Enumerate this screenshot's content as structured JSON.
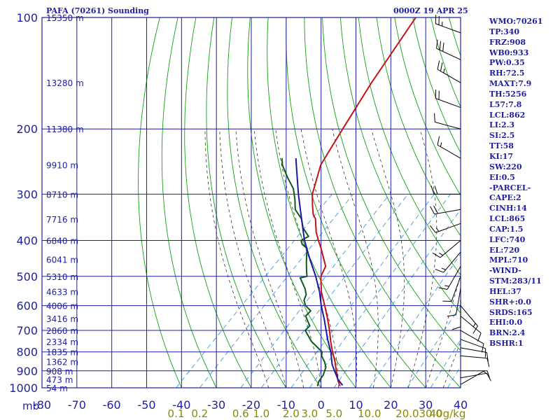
{
  "header": {
    "station_title": "PAFA (70261) Sounding",
    "valid_time": "0000Z 19 APR 25"
  },
  "colors": {
    "frame": "#1f1f9f",
    "isotherm": "#1f1f9f",
    "isobar": "#1f1f9f",
    "dry_adiabat": "#12a012",
    "moist_adiabat": "#333333",
    "mixing_ratio": "#3a9ad9",
    "temperature": "#c0141a",
    "dewpoint": "#0f5a1a",
    "parcel": "#1a1aa0",
    "mixing_label": "#8a8a00"
  },
  "chart_data": {
    "type": "skew-t",
    "title": "PAFA (70261) Sounding",
    "subtitle": "0000Z 19 APR 25",
    "pressure_unit_label": "mb",
    "pressure_levels": [
      100,
      200,
      300,
      400,
      500,
      600,
      700,
      800,
      900,
      1000
    ],
    "temperature_ticks": [
      -80,
      -70,
      -60,
      -50,
      -40,
      -30,
      -20,
      -10,
      0,
      10,
      20,
      30,
      40
    ],
    "temperature_tick_labels": [
      "-80",
      "-70",
      "-60",
      "-50",
      "-40",
      "-30",
      "-20",
      "-10",
      "0",
      "10",
      "20",
      "30",
      "40"
    ],
    "mixing_ratio_label_text": [
      "0.1",
      "0.2",
      "0.6",
      "1.0",
      "2.0",
      "3.0",
      "5.0",
      "10.0",
      "20.0",
      "30.0",
      "40g/kg"
    ],
    "height_labels": [
      {
        "p": 100,
        "text": "15350 m"
      },
      {
        "p": 150,
        "text": "13280 m"
      },
      {
        "p": 200,
        "text": "11380 m"
      },
      {
        "p": 250,
        "text": "9910 m"
      },
      {
        "p": 300,
        "text": "8710 m"
      },
      {
        "p": 350,
        "text": "7716 m"
      },
      {
        "p": 400,
        "text": "6840 m"
      },
      {
        "p": 450,
        "text": "6041 m"
      },
      {
        "p": 500,
        "text": "5310 m"
      },
      {
        "p": 550,
        "text": "4633 m"
      },
      {
        "p": 600,
        "text": "4006 m"
      },
      {
        "p": 650,
        "text": "3416 m"
      },
      {
        "p": 700,
        "text": "2860 m"
      },
      {
        "p": 750,
        "text": "2334 m"
      },
      {
        "p": 800,
        "text": "1835 m"
      },
      {
        "p": 850,
        "text": "1362 m"
      },
      {
        "p": 900,
        "text": "908 m"
      },
      {
        "p": 950,
        "text": "473 m"
      },
      {
        "p": 1000,
        "text": "54 m"
      }
    ],
    "series": [
      {
        "key": "temperature",
        "points": [
          {
            "p": 990,
            "t": 5
          },
          {
            "p": 960,
            "t": 3
          },
          {
            "p": 925,
            "t": 1
          },
          {
            "p": 900,
            "t": -0.5
          },
          {
            "p": 850,
            "t": -3.5
          },
          {
            "p": 800,
            "t": -7
          },
          {
            "p": 750,
            "t": -10.5
          },
          {
            "p": 700,
            "t": -14
          },
          {
            "p": 650,
            "t": -18
          },
          {
            "p": 600,
            "t": -22.5
          },
          {
            "p": 550,
            "t": -27.5
          },
          {
            "p": 500,
            "t": -32
          },
          {
            "p": 470,
            "t": -33.5
          },
          {
            "p": 450,
            "t": -36
          },
          {
            "p": 420,
            "t": -40
          },
          {
            "p": 400,
            "t": -43
          },
          {
            "p": 380,
            "t": -46
          },
          {
            "p": 350,
            "t": -50
          },
          {
            "p": 340,
            "t": -52
          },
          {
            "p": 320,
            "t": -55
          },
          {
            "p": 300,
            "t": -58
          },
          {
            "p": 250,
            "t": -64
          },
          {
            "p": 200,
            "t": -68
          },
          {
            "p": 150,
            "t": -73
          },
          {
            "p": 100,
            "t": -79
          }
        ]
      },
      {
        "key": "dewpoint",
        "points": [
          {
            "p": 990,
            "t": -1.5
          },
          {
            "p": 960,
            "t": -2.5
          },
          {
            "p": 925,
            "t": -3
          },
          {
            "p": 880,
            "t": -4.5
          },
          {
            "p": 850,
            "t": -6.5
          },
          {
            "p": 820,
            "t": -9
          },
          {
            "p": 800,
            "t": -10
          },
          {
            "p": 750,
            "t": -16
          },
          {
            "p": 700,
            "t": -21
          },
          {
            "p": 680,
            "t": -21
          },
          {
            "p": 660,
            "t": -23
          },
          {
            "p": 640,
            "t": -25
          },
          {
            "p": 620,
            "t": -25
          },
          {
            "p": 600,
            "t": -28
          },
          {
            "p": 580,
            "t": -30
          },
          {
            "p": 560,
            "t": -31
          },
          {
            "p": 540,
            "t": -33
          },
          {
            "p": 520,
            "t": -35.5
          },
          {
            "p": 505,
            "t": -37.5
          },
          {
            "p": 500,
            "t": -36
          },
          {
            "p": 480,
            "t": -38
          },
          {
            "p": 460,
            "t": -40
          },
          {
            "p": 440,
            "t": -42
          },
          {
            "p": 420,
            "t": -44
          },
          {
            "p": 410,
            "t": -46.5
          },
          {
            "p": 400,
            "t": -48
          },
          {
            "p": 390,
            "t": -47
          },
          {
            "p": 370,
            "t": -51
          },
          {
            "p": 350,
            "t": -54
          },
          {
            "p": 330,
            "t": -58.5
          },
          {
            "p": 310,
            "t": -61.5
          },
          {
            "p": 290,
            "t": -65
          },
          {
            "p": 270,
            "t": -70
          },
          {
            "p": 250,
            "t": -75
          },
          {
            "p": 240,
            "t": -77
          }
        ]
      },
      {
        "key": "parcel",
        "points": [
          {
            "p": 985,
            "t": 5.5
          },
          {
            "p": 950,
            "t": 2.5
          },
          {
            "p": 900,
            "t": -1
          },
          {
            "p": 865,
            "t": -3.5
          },
          {
            "p": 800,
            "t": -7.5
          },
          {
            "p": 740,
            "t": -12
          },
          {
            "p": 700,
            "t": -15
          },
          {
            "p": 650,
            "t": -19
          },
          {
            "p": 600,
            "t": -23.5
          },
          {
            "p": 550,
            "t": -28
          },
          {
            "p": 500,
            "t": -33.5
          },
          {
            "p": 450,
            "t": -40
          },
          {
            "p": 400,
            "t": -47
          },
          {
            "p": 350,
            "t": -54
          },
          {
            "p": 300,
            "t": -62
          },
          {
            "p": 250,
            "t": -71
          },
          {
            "p": 240,
            "t": -73
          }
        ]
      }
    ],
    "wind_barbs": [
      {
        "p": 110,
        "dir": 290,
        "kt": 25
      },
      {
        "p": 130,
        "dir": 295,
        "kt": 30
      },
      {
        "p": 150,
        "dir": 300,
        "kt": 25
      },
      {
        "p": 175,
        "dir": 290,
        "kt": 20
      },
      {
        "p": 200,
        "dir": 285,
        "kt": 10
      },
      {
        "p": 240,
        "dir": 300,
        "kt": 15
      },
      {
        "p": 300,
        "dir": 270,
        "kt": 20
      },
      {
        "p": 330,
        "dir": 260,
        "kt": 20
      },
      {
        "p": 360,
        "dir": 250,
        "kt": 15
      },
      {
        "p": 400,
        "dir": 230,
        "kt": 15
      },
      {
        "p": 430,
        "dir": 220,
        "kt": 15
      },
      {
        "p": 470,
        "dir": 210,
        "kt": 15
      },
      {
        "p": 500,
        "dir": 200,
        "kt": 10
      },
      {
        "p": 540,
        "dir": 190,
        "kt": 10
      },
      {
        "p": 580,
        "dir": 180,
        "kt": 10
      },
      {
        "p": 600,
        "dir": 140,
        "kt": 15
      },
      {
        "p": 640,
        "dir": 130,
        "kt": 10
      },
      {
        "p": 700,
        "dir": 120,
        "kt": 10
      },
      {
        "p": 740,
        "dir": 110,
        "kt": 10
      },
      {
        "p": 780,
        "dir": 100,
        "kt": 10
      },
      {
        "p": 820,
        "dir": 95,
        "kt": 10
      },
      {
        "p": 900,
        "dir": 90,
        "kt": 10
      },
      {
        "p": 940,
        "dir": 80,
        "kt": 10
      },
      {
        "p": 980,
        "dir": 60,
        "kt": 5
      }
    ],
    "indices": [
      "WMO:70261",
      "TP:340",
      "FRZ:908",
      "WB0:933",
      "PW:0.35",
      "RH:72.5",
      "MAXT:7.9",
      "TH:5256",
      "L57:7.8",
      "LCL:862",
      "LI:2.3",
      "SI:2.5",
      "TT:58",
      "KI:17",
      "SW:220",
      "EI:0.5",
      "-PARCEL-",
      "CAPE:2",
      "CINH:14",
      "LCL:865",
      "CAP:1.5",
      "LFC:740",
      "EL:720",
      "MPL:710",
      "-WIND-",
      "STM:283/11",
      "HEL:37",
      "SHR+:0.0",
      "SRDS:165",
      "EHI:0.0",
      "BRN:2.4",
      "BSHR:1"
    ]
  }
}
